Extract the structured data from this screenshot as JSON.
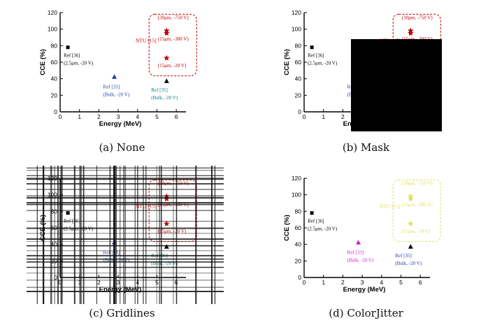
{
  "captions": [
    "(a) None",
    "(b) Mask",
    "(c) Gridlines",
    "(d) ColorJitter"
  ],
  "chart_data": [
    {
      "type": "scatter",
      "xlabel": "Energy (MeV)",
      "ylabel": "CCE (%)",
      "xlim": [
        0,
        6.5
      ],
      "ylim": [
        0,
        120
      ],
      "xticks": [
        "0",
        "1",
        "2",
        "3",
        "4",
        "5",
        "6"
      ],
      "yticks": [
        "0",
        "20",
        "40",
        "60",
        "80",
        "100",
        "120"
      ],
      "points": [
        {
          "label": "Ref [36]",
          "sublabel": "(2.5μm, -20 V)",
          "x": 0.4,
          "y": 78,
          "marker": "square",
          "color": "#000000",
          "label_color": "#000000"
        },
        {
          "label": "Ref [33]",
          "sublabel": "(Bulk, -20 V)",
          "x": 2.8,
          "y": 42,
          "marker": "triangle",
          "color": "#1f3fa8",
          "label_color": "#1f3fa8"
        },
        {
          "label": "Ref [35]",
          "sublabel": "(Bulk, -20 V)",
          "x": 5.5,
          "y": 37,
          "marker": "triangle",
          "color": "#000000",
          "label_color": "#008080"
        },
        {
          "label": "(30μm, -750 V)",
          "x": 5.5,
          "y": 98,
          "marker": "star",
          "color": "#c00000",
          "label_color": "#c00000"
        },
        {
          "label": "(15μm, -300 V)",
          "x": 5.5,
          "y": 95,
          "marker": "star",
          "color": "#c00000",
          "label_color": "#c00000"
        },
        {
          "label": "(15μm, -20 V)",
          "x": 5.5,
          "y": 65,
          "marker": "star",
          "color": "#c00000",
          "label_color": "#c00000"
        }
      ],
      "annotation": "NTU [15]",
      "annotation_color": "#c00000"
    }
  ],
  "jitter_colors": {
    "ref36": "#000000",
    "ref33": "#cc22cc",
    "ref35_marker": "#000000",
    "ref35_label": "#1f3fa8",
    "ntu": "#e0e060"
  }
}
